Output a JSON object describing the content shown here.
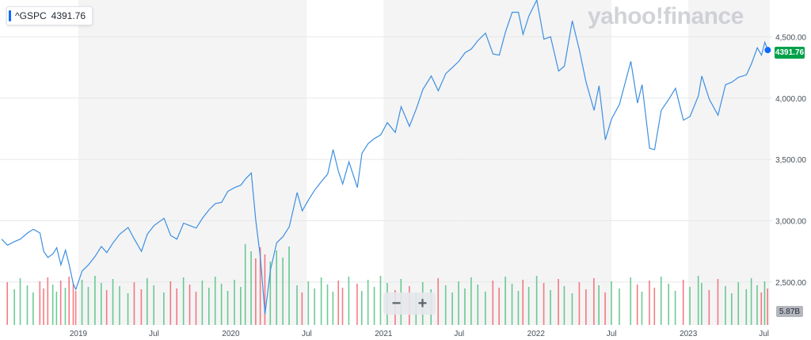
{
  "ticker": {
    "symbol": "^GSPC",
    "price": "4391.76"
  },
  "brand": "yahoo!finance",
  "zoom": {
    "minus": "−",
    "plus": "+"
  },
  "price_tag": "4391.76",
  "volume_tag": "5.87B",
  "colors": {
    "line": "#3d8fe0",
    "up_volume": "#3cba6f",
    "down_volume": "#f0505a",
    "price_tag": "#00a04a",
    "band": "#f4f4f5"
  },
  "chart_data": {
    "type": "line",
    "title": "",
    "xlabel": "",
    "ylabel": "",
    "x_tick_labels": [
      "2019",
      "Jul",
      "2020",
      "Jul",
      "2021",
      "Jul",
      "2022",
      "Jul",
      "2023",
      "Jul"
    ],
    "y_tick_labels": [
      "2,500.00",
      "3,000.00",
      "3,500.00",
      "4,000.00",
      "4,500.00"
    ],
    "y_ticks": [
      2500,
      3000,
      3500,
      4000,
      4500
    ],
    "ylim": [
      2150,
      4800
    ],
    "series": [
      {
        "name": "^GSPC",
        "points": [
          [
            "2018-07-01",
            2850
          ],
          [
            "2018-07-15",
            2800
          ],
          [
            "2018-08-01",
            2830
          ],
          [
            "2018-08-15",
            2850
          ],
          [
            "2018-09-01",
            2900
          ],
          [
            "2018-09-15",
            2930
          ],
          [
            "2018-10-01",
            2900
          ],
          [
            "2018-10-10",
            2750
          ],
          [
            "2018-10-20",
            2700
          ],
          [
            "2018-11-01",
            2730
          ],
          [
            "2018-11-10",
            2780
          ],
          [
            "2018-11-20",
            2640
          ],
          [
            "2018-12-01",
            2760
          ],
          [
            "2018-12-10",
            2640
          ],
          [
            "2018-12-20",
            2480
          ],
          [
            "2018-12-26",
            2440
          ],
          [
            "2019-01-10",
            2590
          ],
          [
            "2019-01-25",
            2640
          ],
          [
            "2019-02-10",
            2710
          ],
          [
            "2019-02-25",
            2790
          ],
          [
            "2019-03-10",
            2740
          ],
          [
            "2019-03-25",
            2820
          ],
          [
            "2019-04-10",
            2890
          ],
          [
            "2019-04-30",
            2945
          ],
          [
            "2019-05-15",
            2850
          ],
          [
            "2019-06-01",
            2750
          ],
          [
            "2019-06-15",
            2890
          ],
          [
            "2019-07-01",
            2960
          ],
          [
            "2019-07-25",
            3020
          ],
          [
            "2019-08-10",
            2880
          ],
          [
            "2019-08-25",
            2850
          ],
          [
            "2019-09-10",
            2980
          ],
          [
            "2019-09-25",
            2960
          ],
          [
            "2019-10-10",
            2940
          ],
          [
            "2019-10-25",
            3020
          ],
          [
            "2019-11-10",
            3090
          ],
          [
            "2019-11-25",
            3140
          ],
          [
            "2019-12-10",
            3150
          ],
          [
            "2019-12-25",
            3240
          ],
          [
            "2020-01-10",
            3270
          ],
          [
            "2020-01-25",
            3290
          ],
          [
            "2020-02-05",
            3340
          ],
          [
            "2020-02-19",
            3390
          ],
          [
            "2020-03-01",
            3000
          ],
          [
            "2020-03-12",
            2700
          ],
          [
            "2020-03-23",
            2240
          ],
          [
            "2020-04-05",
            2600
          ],
          [
            "2020-04-20",
            2820
          ],
          [
            "2020-05-05",
            2870
          ],
          [
            "2020-05-20",
            2950
          ],
          [
            "2020-06-08",
            3230
          ],
          [
            "2020-06-20",
            3080
          ],
          [
            "2020-07-05",
            3170
          ],
          [
            "2020-07-20",
            3250
          ],
          [
            "2020-08-05",
            3320
          ],
          [
            "2020-08-20",
            3380
          ],
          [
            "2020-09-02",
            3580
          ],
          [
            "2020-09-15",
            3400
          ],
          [
            "2020-09-25",
            3300
          ],
          [
            "2020-10-10",
            3480
          ],
          [
            "2020-10-30",
            3270
          ],
          [
            "2020-11-10",
            3550
          ],
          [
            "2020-11-25",
            3630
          ],
          [
            "2020-12-10",
            3670
          ],
          [
            "2020-12-25",
            3700
          ],
          [
            "2021-01-10",
            3800
          ],
          [
            "2021-01-29",
            3720
          ],
          [
            "2021-02-12",
            3930
          ],
          [
            "2021-03-04",
            3770
          ],
          [
            "2021-03-20",
            3910
          ],
          [
            "2021-04-05",
            4070
          ],
          [
            "2021-04-25",
            4180
          ],
          [
            "2021-05-12",
            4060
          ],
          [
            "2021-05-30",
            4200
          ],
          [
            "2021-06-15",
            4250
          ],
          [
            "2021-06-30",
            4300
          ],
          [
            "2021-07-15",
            4370
          ],
          [
            "2021-07-30",
            4400
          ],
          [
            "2021-08-15",
            4470
          ],
          [
            "2021-09-02",
            4530
          ],
          [
            "2021-09-20",
            4360
          ],
          [
            "2021-10-05",
            4350
          ],
          [
            "2021-10-20",
            4540
          ],
          [
            "2021-11-05",
            4700
          ],
          [
            "2021-11-20",
            4700
          ],
          [
            "2021-12-01",
            4520
          ],
          [
            "2021-12-15",
            4670
          ],
          [
            "2022-01-03",
            4800
          ],
          [
            "2022-01-20",
            4480
          ],
          [
            "2022-02-05",
            4500
          ],
          [
            "2022-02-24",
            4220
          ],
          [
            "2022-03-10",
            4260
          ],
          [
            "2022-03-29",
            4630
          ],
          [
            "2022-04-15",
            4390
          ],
          [
            "2022-05-01",
            4130
          ],
          [
            "2022-05-20",
            3900
          ],
          [
            "2022-06-01",
            4100
          ],
          [
            "2022-06-16",
            3660
          ],
          [
            "2022-07-01",
            3830
          ],
          [
            "2022-07-20",
            3950
          ],
          [
            "2022-08-16",
            4300
          ],
          [
            "2022-09-01",
            3960
          ],
          [
            "2022-09-12",
            4110
          ],
          [
            "2022-09-30",
            3590
          ],
          [
            "2022-10-12",
            3580
          ],
          [
            "2022-10-28",
            3900
          ],
          [
            "2022-11-15",
            3990
          ],
          [
            "2022-12-01",
            4080
          ],
          [
            "2022-12-20",
            3820
          ],
          [
            "2023-01-05",
            3850
          ],
          [
            "2023-01-25",
            4020
          ],
          [
            "2023-02-02",
            4180
          ],
          [
            "2023-02-20",
            3990
          ],
          [
            "2023-03-13",
            3860
          ],
          [
            "2023-03-31",
            4110
          ],
          [
            "2023-04-15",
            4130
          ],
          [
            "2023-05-01",
            4170
          ],
          [
            "2023-05-20",
            4190
          ],
          [
            "2023-06-01",
            4280
          ],
          [
            "2023-06-15",
            4410
          ],
          [
            "2023-06-25",
            4350
          ],
          [
            "2023-07-03",
            4455
          ],
          [
            "2023-07-10",
            4391.76
          ]
        ]
      }
    ],
    "volume": {
      "last": "5.87B"
    }
  }
}
